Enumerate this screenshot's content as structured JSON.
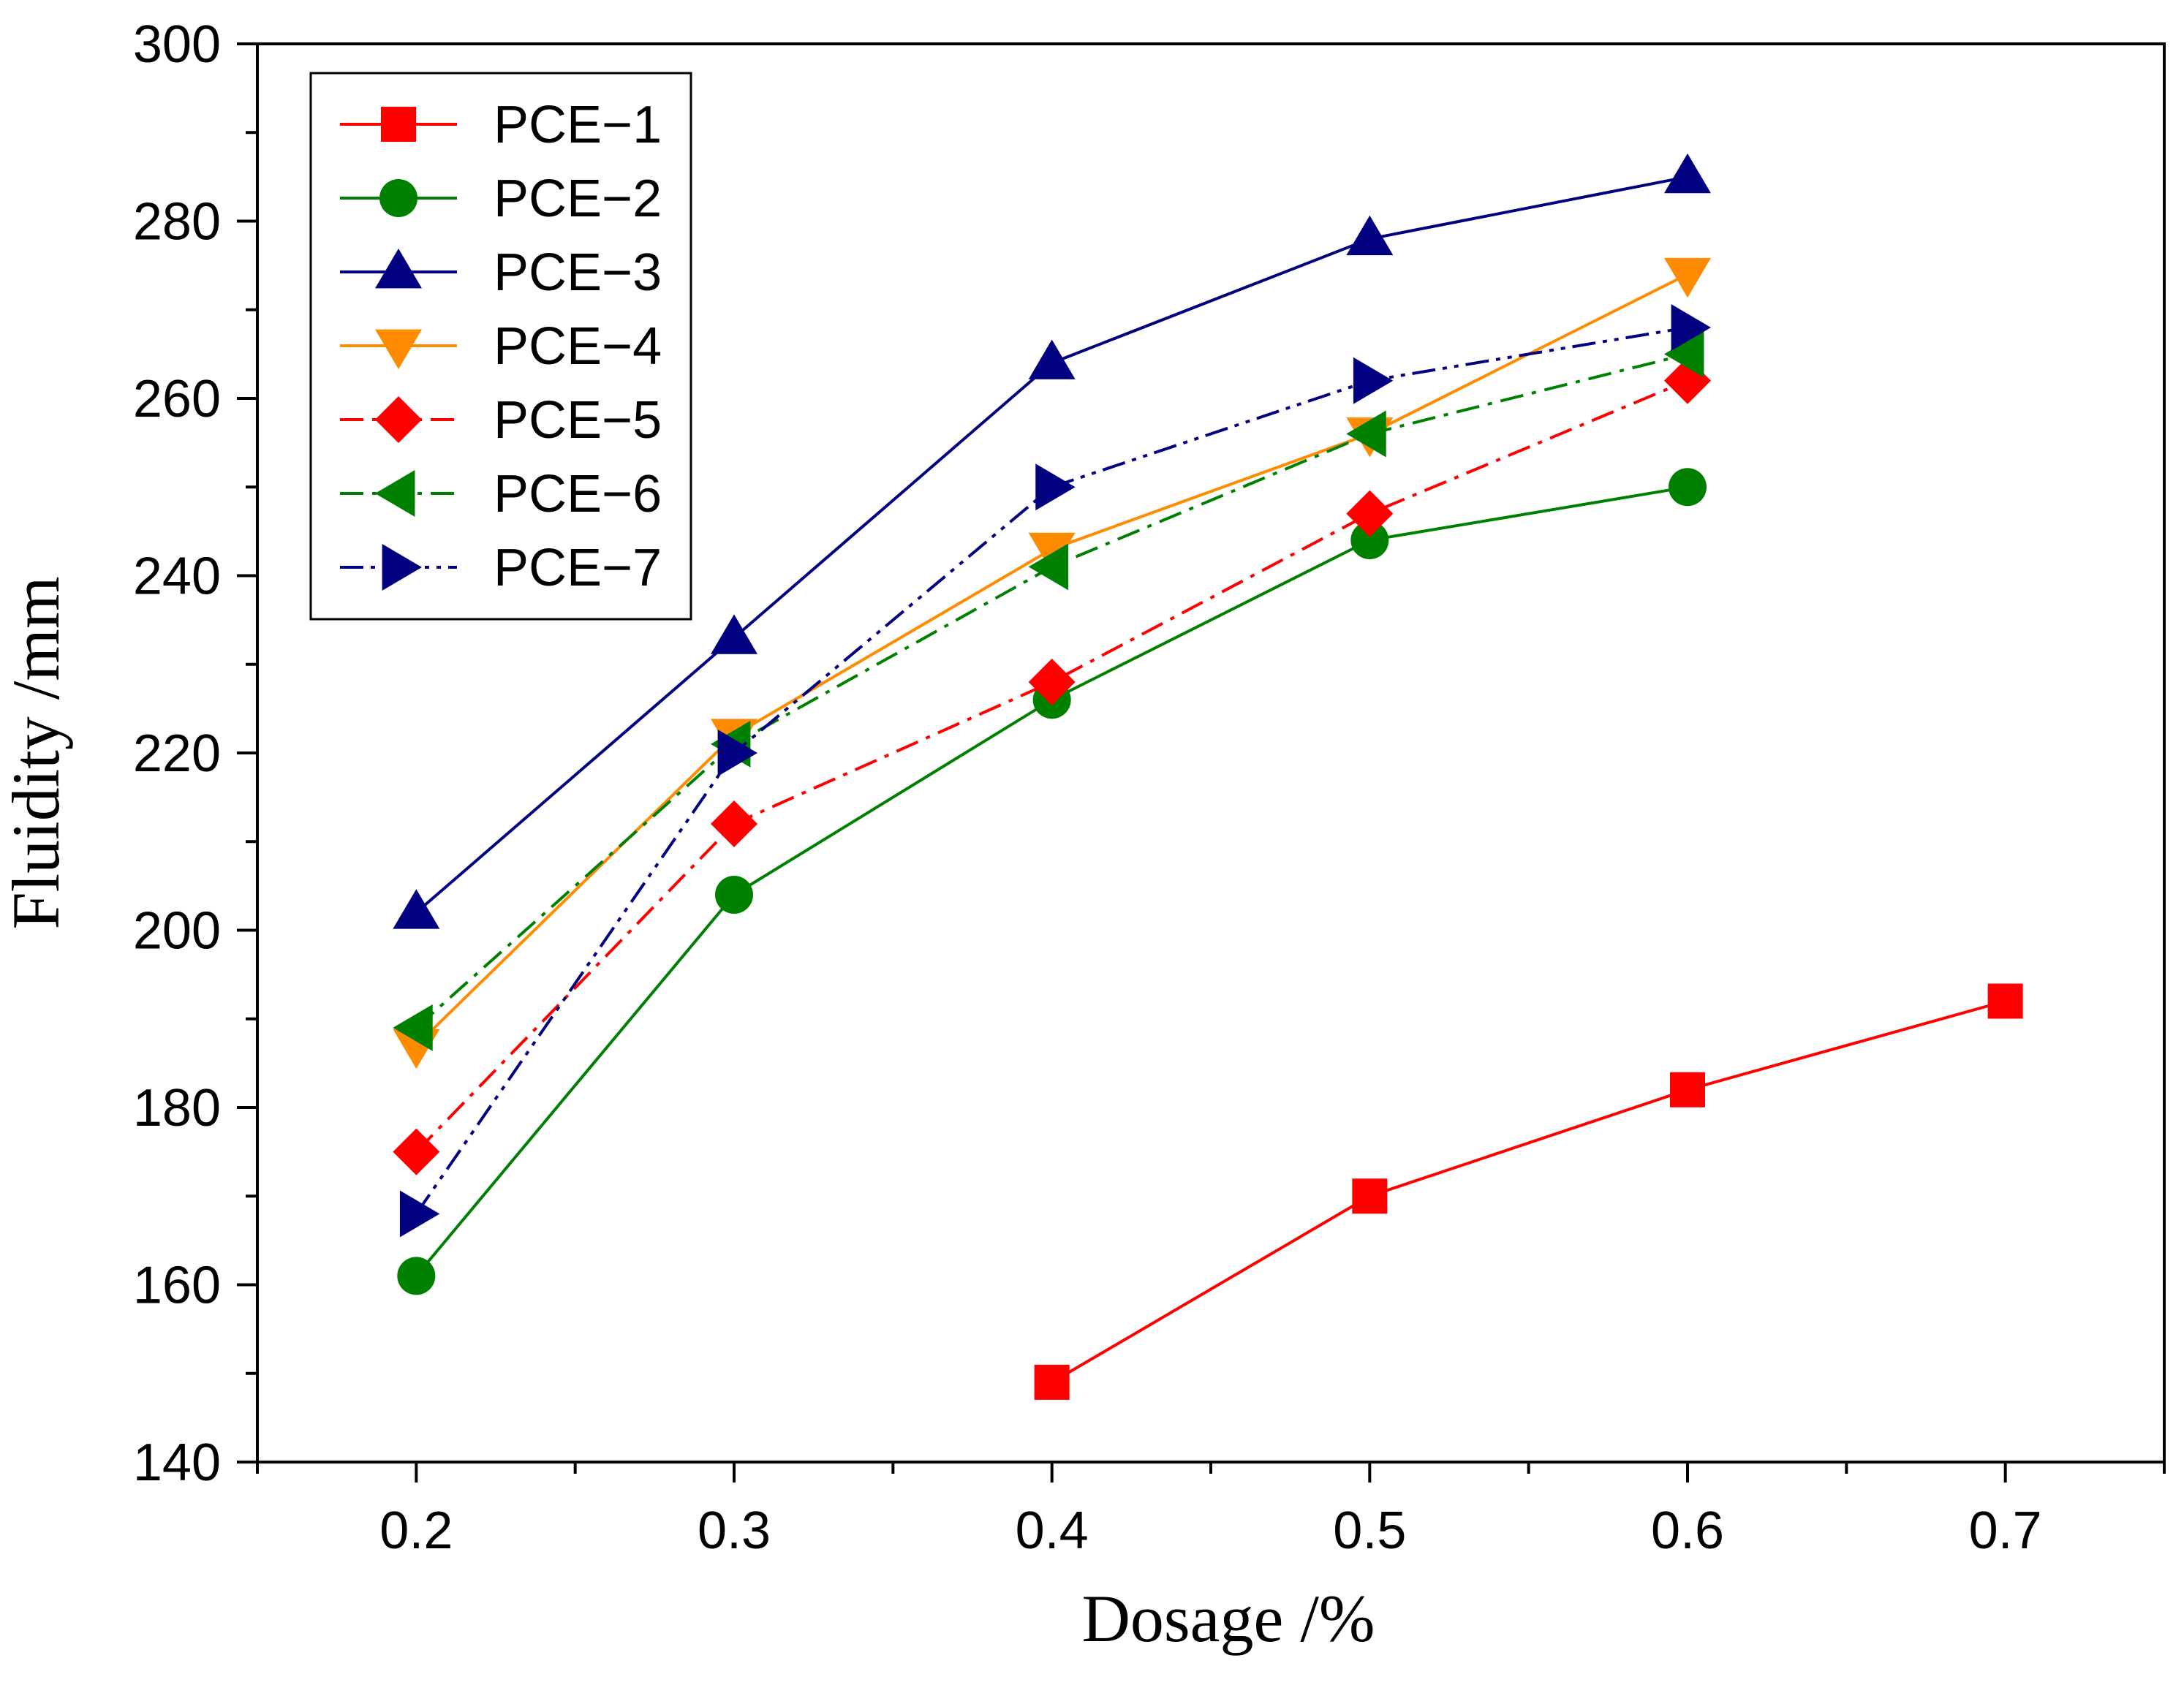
{
  "chart_data": {
    "type": "line",
    "title": "",
    "xlabel": "Dosage /%",
    "ylabel": "Fluidity /mm",
    "xlim": [
      0.15,
      0.75
    ],
    "ylim": [
      140,
      300
    ],
    "xticks": [
      "0.2",
      "0.3",
      "0.4",
      "0.5",
      "0.6",
      "0.7"
    ],
    "xtick_values": [
      0.2,
      0.3,
      0.4,
      0.5,
      0.6,
      0.7
    ],
    "yticks": [
      "140",
      "160",
      "180",
      "200",
      "220",
      "240",
      "260",
      "280",
      "300"
    ],
    "ytick_values": [
      140,
      160,
      180,
      200,
      220,
      240,
      260,
      280,
      300
    ],
    "grid": false,
    "legend_position": "top-left",
    "series": [
      {
        "name": "PCE−1",
        "color": "#ff0000",
        "marker": "square",
        "dash": "solid",
        "x": [
          0.4,
          0.5,
          0.6,
          0.7
        ],
        "values": [
          149,
          170,
          182,
          192
        ]
      },
      {
        "name": "PCE−2",
        "color": "#008000",
        "marker": "circle",
        "dash": "solid",
        "x": [
          0.2,
          0.3,
          0.4,
          0.5,
          0.6
        ],
        "values": [
          161,
          204,
          226,
          244,
          250
        ]
      },
      {
        "name": "PCE−3",
        "color": "#000080",
        "marker": "triangle-up",
        "dash": "solid",
        "x": [
          0.2,
          0.3,
          0.4,
          0.5,
          0.6
        ],
        "values": [
          202,
          233,
          264,
          278,
          285
        ]
      },
      {
        "name": "PCE−4",
        "color": "#ff8c00",
        "marker": "triangle-down",
        "dash": "solid",
        "x": [
          0.2,
          0.3,
          0.4,
          0.5,
          0.6
        ],
        "values": [
          187,
          222,
          243,
          256,
          274
        ]
      },
      {
        "name": "PCE−5",
        "color": "#ff0000",
        "marker": "diamond",
        "dash": "dashdot",
        "x": [
          0.2,
          0.3,
          0.4,
          0.5,
          0.6
        ],
        "values": [
          175,
          212,
          228,
          247,
          262
        ]
      },
      {
        "name": "PCE−6",
        "color": "#008000",
        "marker": "triangle-left",
        "dash": "dashdot",
        "x": [
          0.2,
          0.3,
          0.4,
          0.5,
          0.6
        ],
        "values": [
          189,
          221,
          241,
          256,
          265
        ]
      },
      {
        "name": "PCE−7",
        "color": "#000080",
        "marker": "triangle-right",
        "dash": "dashdotdot",
        "x": [
          0.2,
          0.3,
          0.4,
          0.5,
          0.6
        ],
        "values": [
          168,
          220,
          250,
          262,
          268
        ]
      }
    ]
  }
}
